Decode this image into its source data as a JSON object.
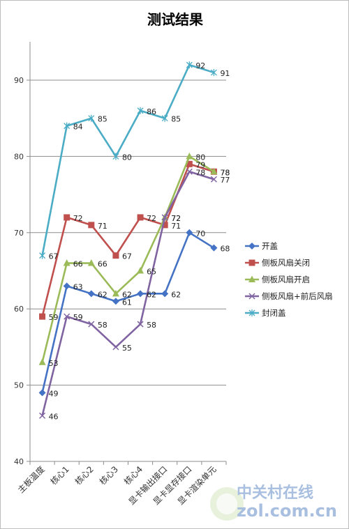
{
  "chart_data": {
    "type": "line",
    "title": "测试结果",
    "categories": [
      "主板温度",
      "核心1",
      "核心2",
      "核心3",
      "核心4",
      "显卡输出接口",
      "显卡显存接口",
      "显卡渲染单元"
    ],
    "ylim": [
      40,
      90
    ],
    "yticks": [
      40,
      50,
      60,
      70,
      80,
      90
    ],
    "grid": true,
    "legend_position": "right",
    "series": [
      {
        "name": "开盖",
        "color": "#4472c4",
        "marker": "diamond",
        "values": [
          49,
          63,
          62,
          61,
          62,
          62,
          70,
          68
        ]
      },
      {
        "name": "侧板风扇关闭",
        "color": "#c0504d",
        "marker": "square",
        "values": [
          59,
          72,
          71,
          67,
          72,
          71,
          79,
          78
        ]
      },
      {
        "name": "侧板风扇开启",
        "color": "#9bbb59",
        "marker": "triangle",
        "values": [
          53,
          66,
          66,
          62,
          65,
          72,
          80,
          78
        ]
      },
      {
        "name": "侧板风扇+前后风扇",
        "color": "#8064a2",
        "marker": "x",
        "values": [
          46,
          59,
          58,
          55,
          58,
          72,
          78,
          77
        ]
      },
      {
        "name": "封闭盖",
        "color": "#4bacc6",
        "marker": "star",
        "values": [
          67,
          84,
          85,
          80,
          86,
          85,
          92,
          91
        ]
      }
    ]
  },
  "watermark": {
    "line1": "中关村在线",
    "line2": "zol.com.cn"
  }
}
